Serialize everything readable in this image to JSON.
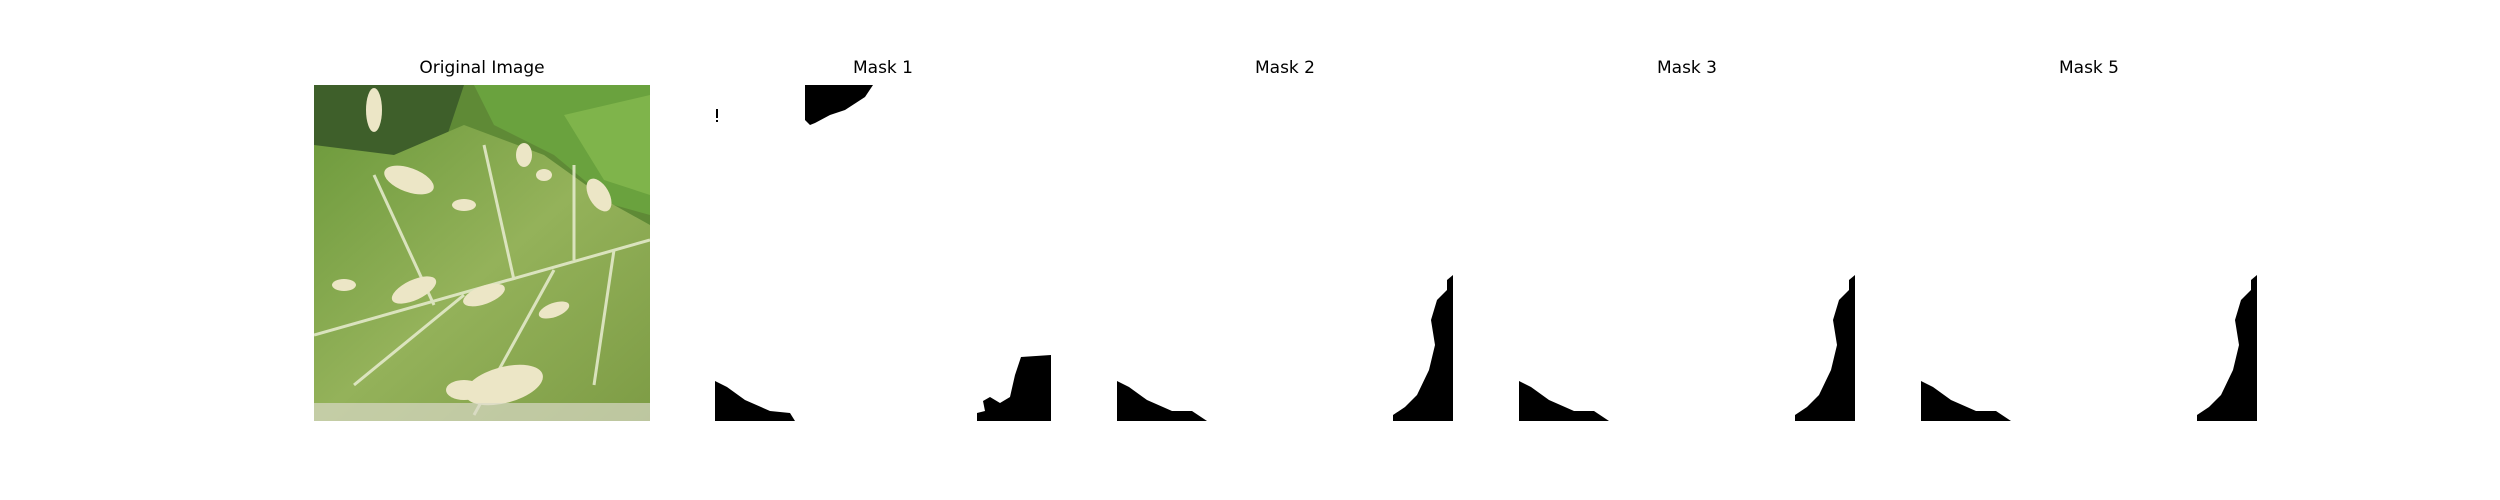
{
  "figure": {
    "panels": [
      {
        "title": "Original Image",
        "kind": "photo"
      },
      {
        "title": "Mask 1",
        "kind": "mask"
      },
      {
        "title": "Mask 2",
        "kind": "mask"
      },
      {
        "title": "Mask 3",
        "kind": "mask"
      },
      {
        "title": "Mask 5",
        "kind": "mask"
      }
    ],
    "colors": {
      "mask_foreground": "#000000",
      "mask_background": "#ffffff",
      "leaf_green": "#8fae4f",
      "leaf_dark": "#4f7a2e",
      "lesion": "#e9e3c2"
    }
  }
}
